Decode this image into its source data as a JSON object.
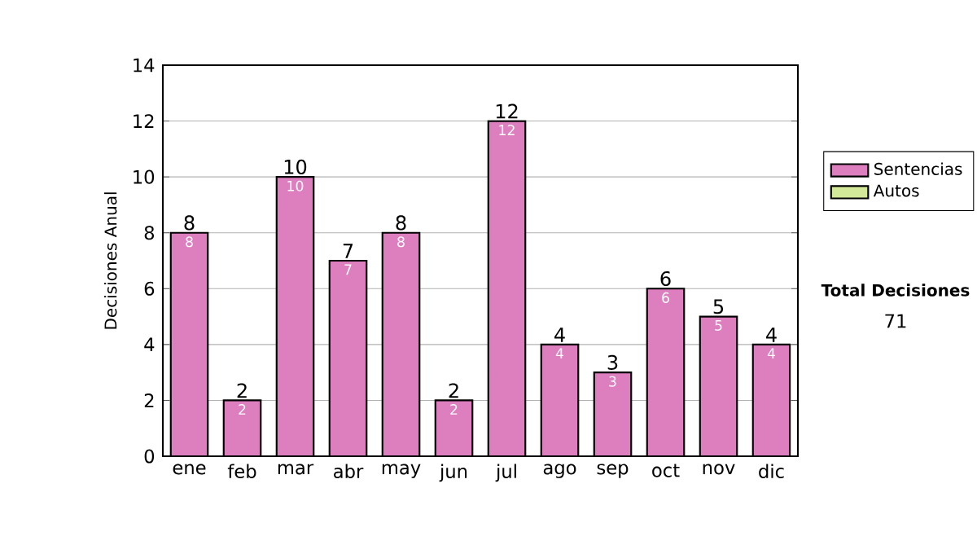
{
  "chart_data": {
    "type": "bar",
    "stacked": true,
    "categories": [
      "ene",
      "feb",
      "mar",
      "abr",
      "may",
      "jun",
      "jul",
      "ago",
      "sep",
      "oct",
      "nov",
      "dic"
    ],
    "series": [
      {
        "name": "Sentencias",
        "color": "#dd7ebf",
        "values": [
          8,
          2,
          10,
          7,
          8,
          2,
          12,
          4,
          3,
          6,
          5,
          4
        ]
      },
      {
        "name": "Autos",
        "color": "#d4e89a",
        "values": [
          null,
          null,
          null,
          null,
          null,
          null,
          null,
          null,
          null,
          null,
          null,
          null
        ]
      }
    ],
    "ylabel": "Decisiones Anual",
    "ylim": [
      0,
      14
    ],
    "yticks": [
      0,
      2,
      4,
      6,
      8,
      10,
      12,
      14
    ],
    "grid": "y",
    "legend": "right",
    "data_labels": true,
    "totals": [
      "8",
      "2",
      "10",
      "7",
      "8",
      "2",
      "12",
      "4",
      "3",
      "6",
      "5",
      "4"
    ],
    "annotations": [
      "Total Decisiones",
      "71"
    ]
  }
}
